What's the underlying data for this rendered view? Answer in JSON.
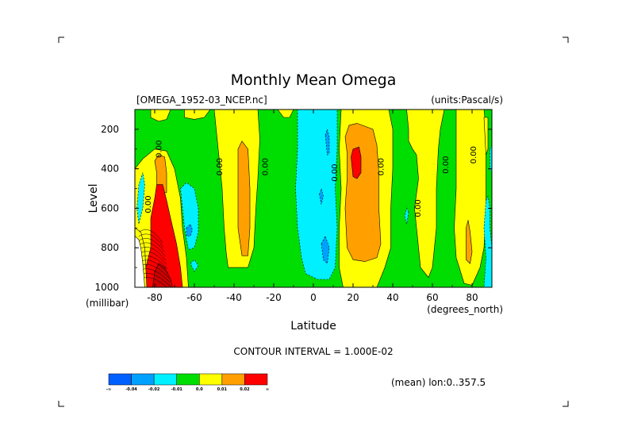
{
  "chart_data": {
    "type": "heatmap",
    "title": "Monthly Mean Omega",
    "dataset_label": "[OMEGA_1952-03_NCEP.nc]",
    "units_label": "(units:Pascal/s)",
    "ylabel": "Level",
    "yunit": "(millibar)",
    "xlabel": "Latitude",
    "xunit": "(degrees_north)",
    "xlim": [
      -90,
      90
    ],
    "ylim": [
      1000,
      100
    ],
    "x_ticks": [
      "-80",
      "-60",
      "-40",
      "-20",
      "0",
      "20",
      "40",
      "60",
      "80"
    ],
    "x_tick_values": [
      -80,
      -60,
      -40,
      -20,
      0,
      20,
      40,
      60,
      80
    ],
    "y_ticks": [
      "200",
      "400",
      "600",
      "800",
      "1000"
    ],
    "y_tick_values": [
      200,
      400,
      600,
      800,
      1000
    ],
    "contour_interval_text": "CONTOUR INTERVAL = 1.000E-02",
    "mean_text": "(mean) lon:0..357.5",
    "contour_label_text": "0.00",
    "colorbar": {
      "labels": [
        "-∞",
        "-0.04",
        "-0.02",
        "-0.01",
        "0.0",
        "0.01",
        "0.02",
        "∞"
      ],
      "colors": [
        "#0060ff",
        "#00a0ff",
        "#00f0ff",
        "#00dd00",
        "#ffff00",
        "#ffa000",
        "#ff0000"
      ]
    },
    "colors": {
      "green": "#00dd00",
      "yellow": "#ffff00",
      "orange": "#ffa000",
      "red": "#ff0000",
      "cyan": "#00f0ff",
      "lightblue": "#00a0ff",
      "blue": "#0060ff",
      "darkred": "#cc0000"
    },
    "regions": [
      {
        "cls": "yellow",
        "pts": [
          [
            -90,
            1000
          ],
          [
            -90,
            400
          ],
          [
            -86,
            350
          ],
          [
            -80,
            300
          ],
          [
            -74,
            310
          ],
          [
            -70,
            400
          ],
          [
            -67,
            550
          ],
          [
            -66,
            700
          ],
          [
            -64,
            850
          ],
          [
            -63,
            1000
          ]
        ]
      },
      {
        "cls": "yellow",
        "pts": [
          [
            -82,
            100
          ],
          [
            -82,
            140
          ],
          [
            -78,
            160
          ],
          [
            -74,
            150
          ],
          [
            -72,
            100
          ]
        ]
      },
      {
        "cls": "orange",
        "pts": [
          [
            -79,
            420
          ],
          [
            -80,
            360
          ],
          [
            -78,
            330
          ],
          [
            -75,
            340
          ],
          [
            -74,
            420
          ],
          [
            -74,
            520
          ],
          [
            -78,
            530
          ],
          [
            -79,
            470
          ]
        ]
      },
      {
        "cls": "red",
        "pts": [
          [
            -82,
            800
          ],
          [
            -82,
            650
          ],
          [
            -80,
            550
          ],
          [
            -79,
            480
          ],
          [
            -76,
            480
          ],
          [
            -74,
            560
          ],
          [
            -72,
            650
          ],
          [
            -69,
            780
          ],
          [
            -67,
            900
          ],
          [
            -66,
            1000
          ],
          [
            -80,
            1000
          ],
          [
            -84,
            1000
          ],
          [
            -85,
            920
          ]
        ]
      },
      {
        "cls": "darkred",
        "pts": [
          [
            -81,
            1000
          ],
          [
            -80,
            920
          ],
          [
            -78,
            880
          ],
          [
            -75,
            900
          ],
          [
            -72,
            960
          ],
          [
            -71,
            1000
          ]
        ]
      },
      {
        "cls": "yellow",
        "pts": [
          [
            -90,
            700
          ],
          [
            -87,
            720
          ],
          [
            -85,
            800
          ],
          [
            -84,
            1000
          ],
          [
            -90,
            1000
          ]
        ]
      },
      {
        "cls": "cyan",
        "pts": [
          [
            -89,
            600
          ],
          [
            -88,
            480
          ],
          [
            -86,
            420
          ],
          [
            -85,
            480
          ],
          [
            -86,
            600
          ],
          [
            -88,
            680
          ]
        ]
      },
      {
        "cls": "cyan",
        "pts": [
          [
            -67,
            500
          ],
          [
            -64,
            470
          ],
          [
            -60,
            500
          ],
          [
            -58,
            600
          ],
          [
            -58,
            720
          ],
          [
            -60,
            800
          ],
          [
            -63,
            810
          ],
          [
            -65,
            700
          ],
          [
            -66,
            600
          ]
        ]
      },
      {
        "cls": "lightblue",
        "pts": [
          [
            -64,
            700
          ],
          [
            -62,
            680
          ],
          [
            -61,
            710
          ],
          [
            -62,
            740
          ],
          [
            -64,
            740
          ]
        ]
      },
      {
        "cls": "cyan",
        "pts": [
          [
            -62,
            880
          ],
          [
            -60,
            860
          ],
          [
            -58,
            890
          ],
          [
            -60,
            920
          ]
        ]
      },
      {
        "cls": "yellow",
        "pts": [
          [
            -65,
            100
          ],
          [
            -65,
            140
          ],
          [
            -60,
            150
          ],
          [
            -55,
            140
          ],
          [
            -52,
            100
          ]
        ]
      },
      {
        "cls": "yellow",
        "pts": [
          [
            -50,
            100
          ],
          [
            -48,
            300
          ],
          [
            -46,
            500
          ],
          [
            -45,
            700
          ],
          [
            -44,
            820
          ],
          [
            -43,
            900
          ],
          [
            -33,
            900
          ],
          [
            -30,
            800
          ],
          [
            -29,
            600
          ],
          [
            -28,
            450
          ],
          [
            -27,
            250
          ],
          [
            -28,
            100
          ]
        ]
      },
      {
        "cls": "orange",
        "pts": [
          [
            -38,
            300
          ],
          [
            -36,
            260
          ],
          [
            -33,
            300
          ],
          [
            -32,
            500
          ],
          [
            -32,
            700
          ],
          [
            -33,
            840
          ],
          [
            -36,
            840
          ],
          [
            -38,
            700
          ],
          [
            -38,
            500
          ]
        ]
      },
      {
        "cls": "yellow",
        "pts": [
          [
            -18,
            100
          ],
          [
            -15,
            140
          ],
          [
            -12,
            140
          ],
          [
            -10,
            100
          ]
        ]
      },
      {
        "cls": "cyan",
        "pts": [
          [
            -8,
            100
          ],
          [
            -8,
            300
          ],
          [
            -9,
            500
          ],
          [
            -8,
            700
          ],
          [
            -6,
            850
          ],
          [
            -4,
            930
          ],
          [
            2,
            960
          ],
          [
            8,
            960
          ],
          [
            11,
            900
          ],
          [
            12,
            700
          ],
          [
            11,
            500
          ],
          [
            12,
            300
          ],
          [
            12,
            100
          ]
        ]
      },
      {
        "cls": "lightblue",
        "pts": [
          [
            4,
            780
          ],
          [
            6,
            740
          ],
          [
            8,
            800
          ],
          [
            7,
            880
          ],
          [
            5,
            860
          ]
        ]
      },
      {
        "cls": "lightblue",
        "pts": [
          [
            6,
            230
          ],
          [
            7,
            200
          ],
          [
            8,
            240
          ],
          [
            8,
            320
          ],
          [
            7,
            330
          ]
        ]
      },
      {
        "cls": "lightblue",
        "pts": [
          [
            3,
            530
          ],
          [
            4,
            500
          ],
          [
            5,
            540
          ],
          [
            4,
            580
          ]
        ]
      },
      {
        "cls": "yellow",
        "pts": [
          [
            14,
            100
          ],
          [
            13,
            300
          ],
          [
            14,
            500
          ],
          [
            13,
            700
          ],
          [
            13,
            900
          ],
          [
            15,
            1000
          ],
          [
            32,
            1000
          ],
          [
            36,
            900
          ],
          [
            39,
            800
          ],
          [
            39,
            600
          ],
          [
            40,
            400
          ],
          [
            40,
            200
          ],
          [
            38,
            100
          ]
        ]
      },
      {
        "cls": "orange",
        "pts": [
          [
            17,
            320
          ],
          [
            16,
            240
          ],
          [
            18,
            180
          ],
          [
            22,
            170
          ],
          [
            30,
            200
          ],
          [
            32,
            280
          ],
          [
            33,
            420
          ],
          [
            33,
            600
          ],
          [
            34,
            780
          ],
          [
            32,
            850
          ],
          [
            26,
            870
          ],
          [
            20,
            860
          ],
          [
            17,
            800
          ],
          [
            16,
            600
          ],
          [
            17,
            450
          ]
        ]
      },
      {
        "cls": "red",
        "pts": [
          [
            19,
            340
          ],
          [
            20,
            300
          ],
          [
            23,
            290
          ],
          [
            24,
            340
          ],
          [
            24,
            420
          ],
          [
            22,
            450
          ],
          [
            20,
            440
          ]
        ]
      },
      {
        "cls": "yellow",
        "pts": [
          [
            47,
            100
          ],
          [
            48,
            200
          ],
          [
            48,
            260
          ],
          [
            50,
            300
          ],
          [
            52,
            330
          ],
          [
            53,
            450
          ],
          [
            51,
            600
          ],
          [
            53,
            800
          ],
          [
            54,
            900
          ],
          [
            58,
            950
          ],
          [
            60,
            900
          ],
          [
            62,
            700
          ],
          [
            62,
            500
          ],
          [
            63,
            300
          ],
          [
            64,
            200
          ],
          [
            66,
            100
          ]
        ]
      },
      {
        "cls": "cyan",
        "pts": [
          [
            48,
            620
          ],
          [
            47,
            600
          ],
          [
            46,
            640
          ],
          [
            47,
            680
          ]
        ]
      },
      {
        "cls": "yellow",
        "pts": [
          [
            72,
            100
          ],
          [
            72,
            300
          ],
          [
            72,
            500
          ],
          [
            71,
            700
          ],
          [
            72,
            850
          ],
          [
            76,
            980
          ],
          [
            80,
            990
          ],
          [
            84,
            900
          ],
          [
            86,
            800
          ],
          [
            87,
            600
          ],
          [
            87,
            400
          ],
          [
            87,
            200
          ],
          [
            86,
            100
          ]
        ]
      },
      {
        "cls": "orange",
        "pts": [
          [
            77,
            700
          ],
          [
            78,
            660
          ],
          [
            79,
            720
          ],
          [
            80,
            820
          ],
          [
            79,
            880
          ],
          [
            77,
            860
          ]
        ]
      },
      {
        "cls": "yellow",
        "pts": [
          [
            86,
            140
          ],
          [
            88,
            140
          ],
          [
            88,
            300
          ],
          [
            87,
            330
          ]
        ]
      },
      {
        "cls": "cyan",
        "pts": [
          [
            87,
            560
          ],
          [
            88,
            540
          ],
          [
            89,
            600
          ],
          [
            89,
            700
          ],
          [
            90,
            800
          ],
          [
            90,
            1000
          ],
          [
            86,
            1000
          ],
          [
            87,
            850
          ],
          [
            86,
            700
          ]
        ]
      },
      {
        "cls": "cyan",
        "pts": [
          [
            89,
            300
          ],
          [
            90,
            280
          ],
          [
            90,
            420
          ],
          [
            89,
            400
          ]
        ]
      }
    ],
    "contour_labels": [
      {
        "lat": -76.5,
        "lev": 300
      },
      {
        "lat": -82,
        "lev": 580
      },
      {
        "lat": -46,
        "lev": 390
      },
      {
        "lat": -23,
        "lev": 390
      },
      {
        "lat": 12,
        "lev": 420
      },
      {
        "lat": 35.5,
        "lev": 390
      },
      {
        "lat": 54,
        "lev": 600
      },
      {
        "lat": 68,
        "lev": 380
      },
      {
        "lat": 82,
        "lev": 330
      }
    ],
    "grid": false,
    "colorbar_placement": "bottom-left"
  }
}
